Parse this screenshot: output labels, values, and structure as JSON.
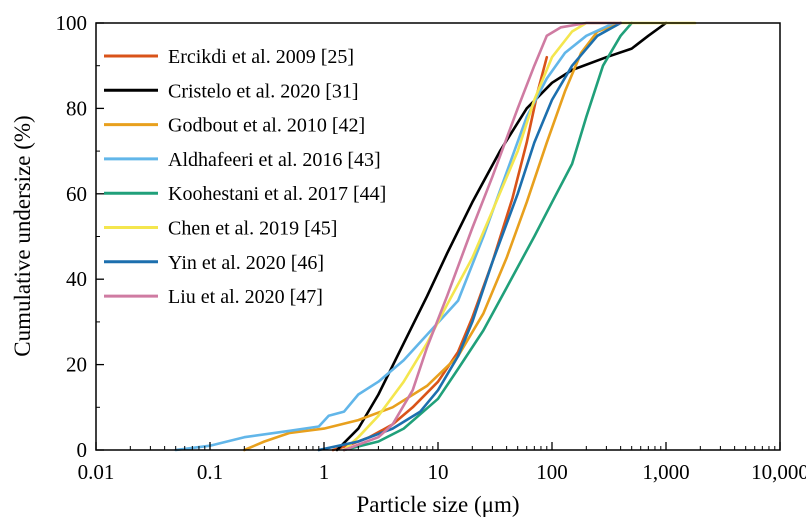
{
  "chart_data": {
    "type": "line",
    "xlabel": "Particle size (μm)",
    "ylabel": "Cumulative undersize (%)",
    "xscale": "log",
    "xlim": [
      0.01,
      10000
    ],
    "ylim": [
      0,
      100
    ],
    "x_ticks": [
      0.01,
      0.1,
      1,
      10,
      100,
      1000,
      10000
    ],
    "x_tick_labels": [
      "0.01",
      "0.1",
      "1",
      "10",
      "100",
      "1,000",
      "10,000"
    ],
    "y_ticks": [
      0,
      20,
      40,
      60,
      80,
      100
    ],
    "y_tick_labels": [
      "0",
      "20",
      "40",
      "60",
      "80",
      "100"
    ],
    "grid": false,
    "legend_position": "top-left",
    "series": [
      {
        "name": "Ercikdi et al. 2009 [25]",
        "color": "#d95319",
        "points": [
          [
            1.2,
            0
          ],
          [
            1.6,
            1
          ],
          [
            2.5,
            3
          ],
          [
            4,
            6
          ],
          [
            6,
            10
          ],
          [
            10,
            16
          ],
          [
            15,
            23
          ],
          [
            20,
            31
          ],
          [
            30,
            44
          ],
          [
            45,
            59
          ],
          [
            60,
            72
          ],
          [
            75,
            84
          ],
          [
            90,
            92
          ]
        ]
      },
      {
        "name": "Cristelo et al. 2020 [31]",
        "color": "#000000",
        "points": [
          [
            1.3,
            0
          ],
          [
            2,
            5
          ],
          [
            3,
            13
          ],
          [
            5,
            25
          ],
          [
            8,
            36
          ],
          [
            12,
            46
          ],
          [
            20,
            58
          ],
          [
            35,
            70
          ],
          [
            60,
            80
          ],
          [
            100,
            86
          ],
          [
            150,
            89
          ],
          [
            300,
            92
          ],
          [
            500,
            94
          ],
          [
            700,
            97
          ],
          [
            1000,
            100
          ]
        ]
      },
      {
        "name": "Godbout et al. 2010 [42]",
        "color": "#e8a01d",
        "points": [
          [
            0.2,
            0
          ],
          [
            0.3,
            2
          ],
          [
            0.5,
            4
          ],
          [
            1,
            5
          ],
          [
            2,
            7
          ],
          [
            4,
            10
          ],
          [
            8,
            15
          ],
          [
            15,
            22
          ],
          [
            25,
            32
          ],
          [
            40,
            45
          ],
          [
            60,
            58
          ],
          [
            90,
            72
          ],
          [
            130,
            84
          ],
          [
            180,
            93
          ],
          [
            250,
            98
          ],
          [
            400,
            100
          ]
        ]
      },
      {
        "name": "Aldhafeeri et al. 2016 [43]",
        "color": "#62b6e9",
        "points": [
          [
            0.05,
            0
          ],
          [
            0.1,
            1
          ],
          [
            0.2,
            3
          ],
          [
            0.5,
            4.5
          ],
          [
            0.9,
            5.5
          ],
          [
            1.1,
            8
          ],
          [
            1.5,
            9
          ],
          [
            2,
            13
          ],
          [
            3,
            16
          ],
          [
            5,
            21
          ],
          [
            8,
            27
          ],
          [
            15,
            35
          ],
          [
            25,
            50
          ],
          [
            40,
            65
          ],
          [
            60,
            78
          ],
          [
            90,
            87
          ],
          [
            130,
            93
          ],
          [
            200,
            97
          ],
          [
            350,
            100
          ]
        ]
      },
      {
        "name": "Koohestani et al. 2017 [44]",
        "color": "#20a07a",
        "points": [
          [
            1.5,
            0
          ],
          [
            3,
            2
          ],
          [
            5,
            5
          ],
          [
            10,
            12
          ],
          [
            15,
            19
          ],
          [
            25,
            28
          ],
          [
            40,
            38
          ],
          [
            70,
            50
          ],
          [
            100,
            58
          ],
          [
            150,
            67
          ],
          [
            200,
            78
          ],
          [
            280,
            90
          ],
          [
            400,
            97
          ],
          [
            500,
            100
          ]
        ]
      },
      {
        "name": "Chen et al. 2019 [45]",
        "color": "#f4e64e",
        "points": [
          [
            1.5,
            0
          ],
          [
            2,
            3
          ],
          [
            3,
            8
          ],
          [
            5,
            16
          ],
          [
            8,
            25
          ],
          [
            12,
            34
          ],
          [
            20,
            45
          ],
          [
            30,
            56
          ],
          [
            50,
            70
          ],
          [
            70,
            82
          ],
          [
            100,
            92
          ],
          [
            150,
            98
          ],
          [
            200,
            100
          ],
          [
            1800,
            100
          ]
        ]
      },
      {
        "name": "Yin et al. 2020 [46]",
        "color": "#1c6fae",
        "points": [
          [
            0.9,
            0
          ],
          [
            2,
            2
          ],
          [
            4,
            5
          ],
          [
            7,
            9
          ],
          [
            10,
            14
          ],
          [
            15,
            22
          ],
          [
            20,
            30
          ],
          [
            30,
            44
          ],
          [
            50,
            60
          ],
          [
            70,
            72
          ],
          [
            100,
            82
          ],
          [
            150,
            90
          ],
          [
            250,
            97
          ],
          [
            400,
            100
          ]
        ]
      },
      {
        "name": "Liu et al. 2020 [47]",
        "color": "#cf7ba2",
        "points": [
          [
            1.5,
            0
          ],
          [
            3,
            3
          ],
          [
            4,
            6
          ],
          [
            6,
            14
          ],
          [
            8,
            24
          ],
          [
            12,
            36
          ],
          [
            20,
            52
          ],
          [
            30,
            64
          ],
          [
            50,
            80
          ],
          [
            70,
            90
          ],
          [
            90,
            97
          ],
          [
            120,
            99
          ],
          [
            200,
            100
          ],
          [
            400,
            100
          ]
        ]
      }
    ]
  }
}
